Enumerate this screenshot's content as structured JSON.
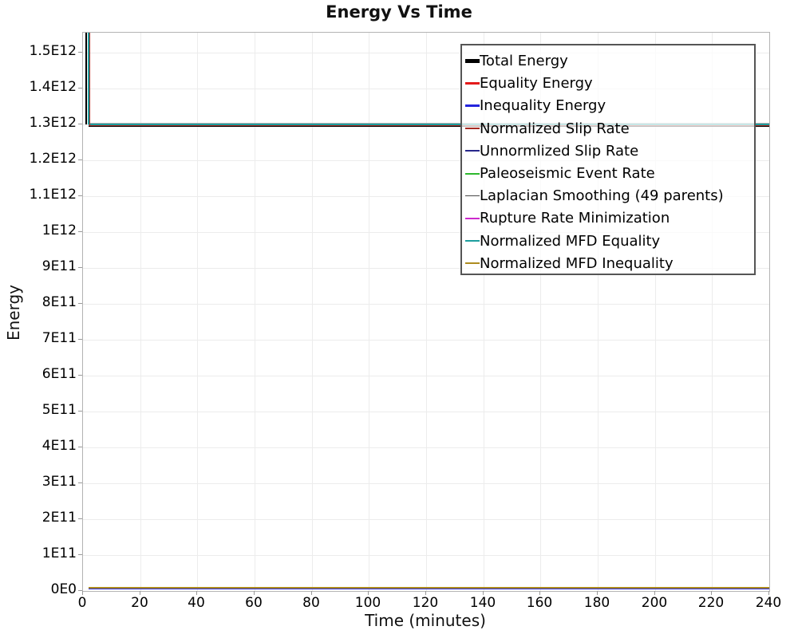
{
  "chart_data": {
    "type": "line",
    "title": "Energy Vs Time",
    "xlabel": "Time (minutes)",
    "ylabel": "Energy",
    "xlim": [
      0,
      240
    ],
    "ylim": [
      0,
      1550000000000.0
    ],
    "x_ticks": [
      "0",
      "20",
      "40",
      "60",
      "80",
      "100",
      "120",
      "140",
      "160",
      "180",
      "200",
      "220",
      "240"
    ],
    "y_ticks": [
      "0E0",
      "1E11",
      "2E11",
      "3E11",
      "4E11",
      "5E11",
      "6E11",
      "7E11",
      "8E11",
      "9E11",
      "1E12",
      "1.1E12",
      "1.2E12",
      "1.3E12",
      "1.4E12",
      "1.5E12"
    ],
    "grid": true,
    "legend_position": "inside-top-right",
    "note": "All series spike above the visible y-range near t≈2 min, then stay constant through t=240. Flat values estimated from pixel positions.",
    "drop_time_min": 2,
    "series": [
      {
        "name": "Total Energy",
        "color": "#000000",
        "line_width": 5,
        "x": [
          2,
          240
        ],
        "y": [
          1300000000000.0,
          1300000000000.0
        ]
      },
      {
        "name": "Equality Energy",
        "color": "#e31a1a",
        "line_width": 3,
        "x": [
          2,
          240
        ],
        "y": [
          1298000000000.0,
          1298000000000.0
        ]
      },
      {
        "name": "Inequality Energy",
        "color": "#2424dd",
        "line_width": 3,
        "x": [
          2,
          240
        ],
        "y": [
          7000000000.0,
          7000000000.0
        ]
      },
      {
        "name": "Normalized Slip Rate",
        "color": "#a52a22",
        "line_width": 2,
        "x": [
          2,
          240
        ],
        "y": [
          1297000000000.0,
          1297000000000.0
        ]
      },
      {
        "name": "Unnormlized Slip Rate",
        "color": "#28288c",
        "line_width": 2,
        "x": [
          2,
          240
        ],
        "y": [
          8000000000.0,
          8000000000.0
        ]
      },
      {
        "name": "Paleoseismic Event Rate",
        "color": "#2eb82e",
        "line_width": 2,
        "x": [
          2,
          240
        ],
        "y": [
          10000000000.0,
          10000000000.0
        ]
      },
      {
        "name": "Laplacian Smoothing (49 parents)",
        "color": "#b0b0b0",
        "line_width": 1,
        "x": [
          2,
          240
        ],
        "y": [
          1304000000000.0,
          1304000000000.0
        ],
        "legend_swatch_color": "#4d4d4d"
      },
      {
        "name": "Rupture Rate Minimization",
        "color": "#cc29cc",
        "line_width": 2,
        "x": [
          2,
          240
        ],
        "y": [
          10000000000.0,
          10000000000.0
        ]
      },
      {
        "name": "Normalized MFD Equality",
        "color": "#1d9e9e",
        "line_width": 2,
        "x": [
          2,
          240
        ],
        "y": [
          1301000000000.0,
          1301000000000.0
        ]
      },
      {
        "name": "Normalized MFD Inequality",
        "color": "#ad8b1f",
        "line_width": 2,
        "x": [
          2,
          240
        ],
        "y": [
          10000000000.0,
          10000000000.0
        ]
      }
    ]
  },
  "colors": {
    "grid": "#ececec",
    "plot_border": "#b3b3b3",
    "legend_border": "#555555",
    "tick": "#999999"
  }
}
